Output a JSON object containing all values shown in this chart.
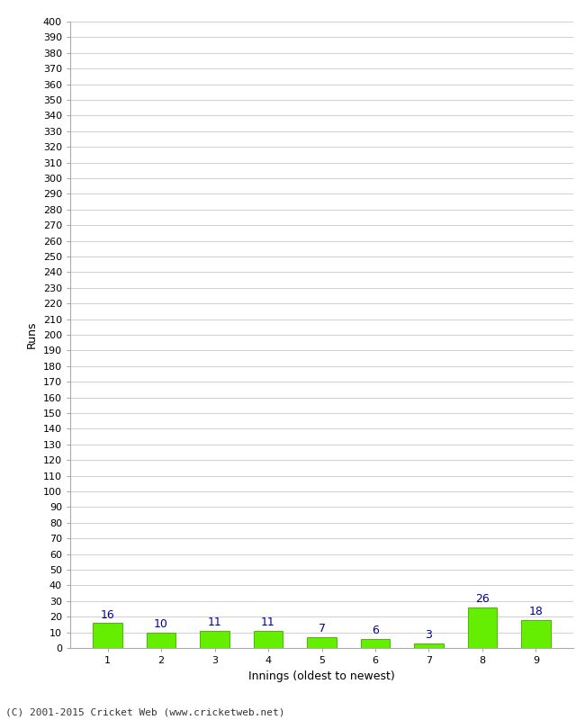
{
  "categories": [
    "1",
    "2",
    "3",
    "4",
    "5",
    "6",
    "7",
    "8",
    "9"
  ],
  "values": [
    16,
    10,
    11,
    11,
    7,
    6,
    3,
    26,
    18
  ],
  "bar_color": "#66ee00",
  "bar_edge_color": "#44bb00",
  "label_color": "#000099",
  "xlabel": "Innings (oldest to newest)",
  "ylabel": "Runs",
  "ylim": [
    0,
    400
  ],
  "background_color": "#ffffff",
  "footer": "(C) 2001-2015 Cricket Web (www.cricketweb.net)",
  "grid_color": "#d0d0d0",
  "tick_fontsize": 8,
  "label_fontsize": 9,
  "footer_fontsize": 8
}
